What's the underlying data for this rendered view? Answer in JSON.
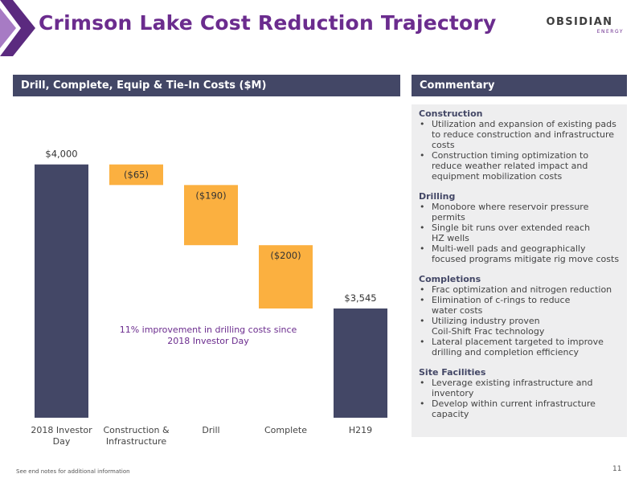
{
  "header": {
    "title": "Crimson Lake Cost Reduction Trajectory",
    "logo_text": "OBSIDIAN",
    "logo_subtext": "ENERGY"
  },
  "colors": {
    "accent_purple": "#6B2C8E",
    "bar_navy": "#434766",
    "bar_orange": "#FBB040",
    "panel_gray": "#EEEEEF"
  },
  "chart_panel": {
    "header": "Drill, Complete, Equip & Tie-In Costs ($M)"
  },
  "chart_data": {
    "type": "bar",
    "subtype": "waterfall",
    "categories": [
      "2018 Investor Day",
      "Construction & Infrastructure",
      "Drill",
      "Complete",
      "H219"
    ],
    "category_labels": [
      [
        "2018 Investor",
        "Day"
      ],
      [
        "Construction &",
        "Infrastructure"
      ],
      [
        "Drill"
      ],
      [
        "Complete"
      ],
      [
        "H219"
      ]
    ],
    "values": [
      4000,
      -65,
      -190,
      -200,
      3545
    ],
    "kinds": [
      "total",
      "delta",
      "delta",
      "delta",
      "total"
    ],
    "data_labels": [
      "$4,000",
      "($65)",
      "($190)",
      "($200)",
      "$3,545"
    ],
    "annotation": [
      "11% improvement in drilling costs since",
      "2018 Investor Day"
    ],
    "ylim": [
      3200,
      4050
    ],
    "title": "",
    "xlabel": "",
    "ylabel": "",
    "grid": false,
    "legend": "none"
  },
  "commentary": {
    "header": "Commentary",
    "sections": [
      {
        "title": "Construction",
        "bullets": [
          [
            "Utilization and expansion of existing pads",
            "to reduce construction and infrastructure",
            "costs"
          ],
          [
            "Construction timing optimization to",
            "reduce weather related impact and",
            "equipment mobilization costs"
          ]
        ]
      },
      {
        "title": "Drilling",
        "bullets": [
          [
            "Monobore where reservoir pressure",
            "permits"
          ],
          [
            "Single bit runs over extended reach",
            "HZ wells"
          ],
          [
            "Multi-well pads and geographically",
            "focused programs mitigate rig move costs"
          ]
        ]
      },
      {
        "title": "Completions",
        "bullets": [
          [
            "Frac optimization and nitrogen reduction"
          ],
          [
            "Elimination of c-rings to reduce",
            "water costs"
          ],
          [
            "Utilizing industry proven",
            "Coil-Shift Frac technology"
          ],
          [
            "Lateral placement targeted to improve",
            "drilling and completion efficiency"
          ]
        ]
      },
      {
        "title": "Site Facilities",
        "bullets": [
          [
            "Leverage existing infrastructure and",
            "inventory"
          ],
          [
            "Develop within current infrastructure",
            "capacity"
          ]
        ]
      }
    ]
  },
  "footer": {
    "note": "See end notes for additional information",
    "page_number": "11"
  }
}
